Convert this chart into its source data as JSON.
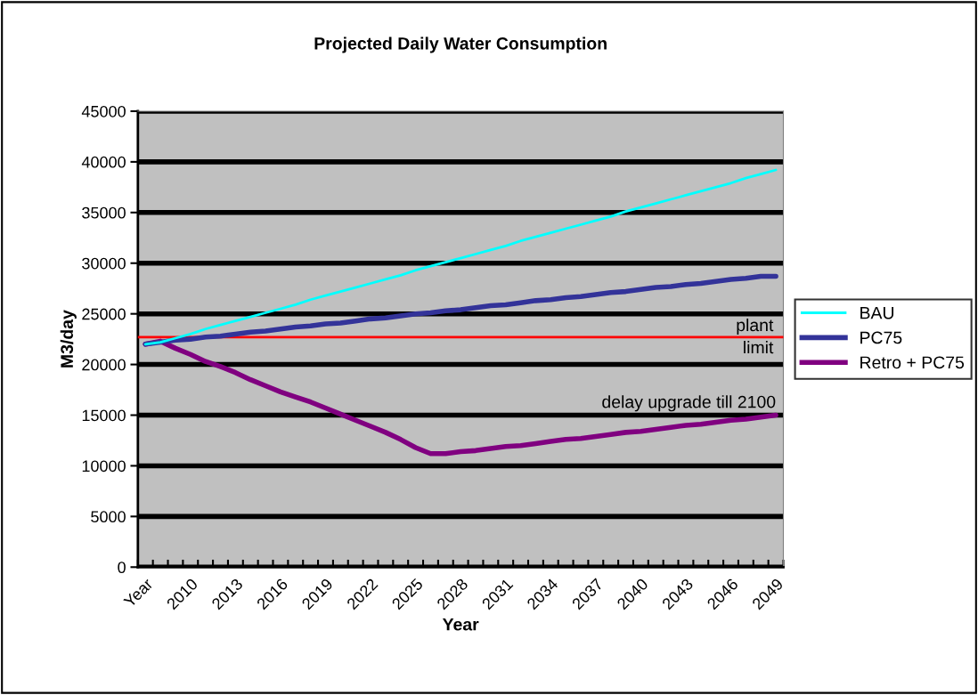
{
  "chart_data": {
    "type": "line",
    "title": "Projected Daily Water Consumption",
    "xlabel": "Year",
    "ylabel": "M3/day",
    "categories": [
      "Year",
      null,
      null,
      "2010",
      null,
      null,
      "2013",
      null,
      null,
      "2016",
      null,
      null,
      "2019",
      null,
      null,
      "2022",
      null,
      null,
      "2025",
      null,
      null,
      "2028",
      null,
      null,
      "2031",
      null,
      null,
      "2034",
      null,
      null,
      "2037",
      null,
      null,
      "2040",
      null,
      null,
      "2043",
      null,
      null,
      "2046",
      null,
      null,
      "2049"
    ],
    "series": [
      {
        "name": "BAU",
        "color": "#00ffff",
        "values": [
          22000,
          22200,
          22600,
          23000,
          23500,
          23900,
          24300,
          24700,
          25100,
          25500,
          25900,
          26400,
          26800,
          27200,
          27600,
          28000,
          28400,
          28800,
          29300,
          29700,
          30100,
          30500,
          30900,
          31300,
          31700,
          32200,
          32600,
          33000,
          33400,
          33800,
          34200,
          34600,
          35100,
          35500,
          35900,
          36300,
          36700,
          37100,
          37500,
          37900,
          38400,
          38800,
          39200
        ]
      },
      {
        "name": "PC75",
        "color": "#333399",
        "values": [
          22000,
          22200,
          22400,
          22500,
          22700,
          22800,
          23000,
          23200,
          23300,
          23500,
          23700,
          23800,
          24000,
          24100,
          24300,
          24500,
          24600,
          24800,
          25000,
          25100,
          25300,
          25400,
          25600,
          25800,
          25900,
          26100,
          26300,
          26400,
          26600,
          26700,
          26900,
          27100,
          27200,
          27400,
          27600,
          27700,
          27900,
          28000,
          28200,
          28400,
          28500,
          28700,
          28700
        ]
      },
      {
        "name": "Retro + PC75",
        "color": "#800080",
        "values": [
          22000,
          22300,
          21600,
          21000,
          20300,
          19800,
          19200,
          18500,
          17900,
          17300,
          16800,
          16300,
          15700,
          15100,
          14500,
          13900,
          13300,
          12600,
          11800,
          11200,
          11200,
          11400,
          11500,
          11700,
          11900,
          12000,
          12200,
          12400,
          12600,
          12700,
          12900,
          13100,
          13300,
          13400,
          13600,
          13800,
          14000,
          14100,
          14300,
          14500,
          14600,
          14800,
          15000
        ]
      }
    ],
    "ylim": [
      0,
      45000
    ],
    "yticks": [
      0,
      5000,
      10000,
      15000,
      20000,
      25000,
      30000,
      35000,
      40000,
      45000
    ],
    "grid": "y",
    "legend": "right",
    "ref_lines": [
      {
        "axis": "y",
        "value": 22700,
        "label": "plant\nlimit",
        "color": "#ff0000"
      }
    ],
    "annotations": [
      {
        "text": "delay upgrade till 2100",
        "x": "2049",
        "y": 15000
      }
    ]
  }
}
